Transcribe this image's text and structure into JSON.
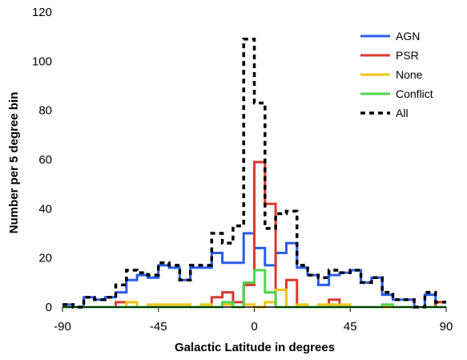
{
  "chart_data": {
    "type": "line",
    "title": "",
    "xlabel": "Galactic Latitude in degrees",
    "ylabel": "Number per 5 degree bin",
    "xlim": [
      -90,
      90
    ],
    "ylim": [
      0,
      120
    ],
    "x_ticks": [
      -90,
      -45,
      0,
      45,
      90
    ],
    "y_ticks": [
      0,
      20,
      40,
      60,
      80,
      100,
      120
    ],
    "grid": false,
    "legend_position": "top-right",
    "x_bin_edges": [
      -90,
      -85,
      -80,
      -75,
      -70,
      -65,
      -60,
      -55,
      -50,
      -45,
      -40,
      -35,
      -30,
      -25,
      -20,
      -15,
      -10,
      -5,
      0,
      5,
      10,
      15,
      20,
      25,
      30,
      35,
      40,
      45,
      50,
      55,
      60,
      65,
      70,
      75,
      80,
      85,
      90
    ],
    "series": [
      {
        "name": "AGN",
        "color": "#2a5de8",
        "dashed": false,
        "width": 3,
        "values": [
          1,
          0,
          4,
          3,
          4,
          6,
          11,
          13,
          12,
          17,
          16,
          11,
          16,
          16,
          22,
          18,
          18,
          30,
          24,
          17,
          22,
          26,
          16,
          13,
          9,
          13,
          14,
          15,
          10,
          12,
          5,
          3,
          3,
          0,
          5,
          0
        ]
      },
      {
        "name": "PSR",
        "color": "#d93a2e",
        "dashed": false,
        "width": 3,
        "values": [
          0,
          0,
          0,
          0,
          0,
          2,
          0,
          0,
          0,
          0,
          0,
          0,
          0,
          0,
          4,
          6,
          2,
          9,
          59,
          42,
          0,
          11,
          0,
          0,
          0,
          3,
          0,
          0,
          0,
          0,
          0,
          0,
          0,
          0,
          0,
          2
        ]
      },
      {
        "name": "None",
        "color": "#f2c418",
        "dashed": false,
        "width": 3,
        "values": [
          0,
          0,
          0,
          0,
          0,
          0,
          2,
          0,
          1,
          1,
          1,
          1,
          0,
          1,
          0,
          1,
          0,
          1,
          0,
          2,
          7,
          0,
          1,
          0,
          1,
          1,
          1,
          0,
          0,
          0,
          0,
          0,
          0,
          0,
          0,
          0
        ]
      },
      {
        "name": "Conflict",
        "color": "#4fd44f",
        "dashed": false,
        "width": 3,
        "values": [
          0,
          0,
          0,
          0,
          0,
          0,
          0,
          0,
          0,
          0,
          0,
          0,
          0,
          0,
          0,
          2,
          0,
          10,
          15,
          6,
          0,
          0,
          0,
          0,
          0,
          0,
          0,
          0,
          0,
          0,
          1,
          0,
          0,
          0,
          0,
          0
        ]
      },
      {
        "name": "All",
        "color": "#000000",
        "dashed": true,
        "width": 3.5,
        "values": [
          1,
          0,
          4,
          3,
          4,
          9,
          15,
          14,
          13,
          18,
          17,
          11,
          17,
          17,
          30,
          26,
          33,
          109,
          83,
          32,
          38,
          39,
          17,
          13,
          12,
          15,
          14,
          15,
          10,
          12,
          6,
          3,
          3,
          0,
          6,
          2
        ]
      }
    ]
  }
}
